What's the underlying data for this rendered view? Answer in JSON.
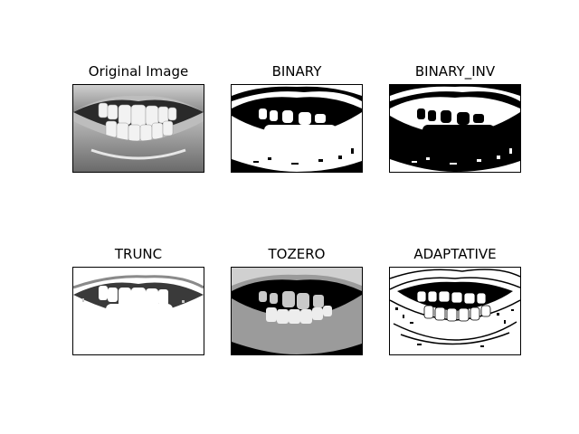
{
  "figure": {
    "panels": [
      {
        "title": "Original Image"
      },
      {
        "title": "BINARY"
      },
      {
        "title": "BINARY_INV"
      },
      {
        "title": "TRUNC"
      },
      {
        "title": "TOZERO"
      },
      {
        "title": "ADAPTATIVE"
      }
    ]
  }
}
